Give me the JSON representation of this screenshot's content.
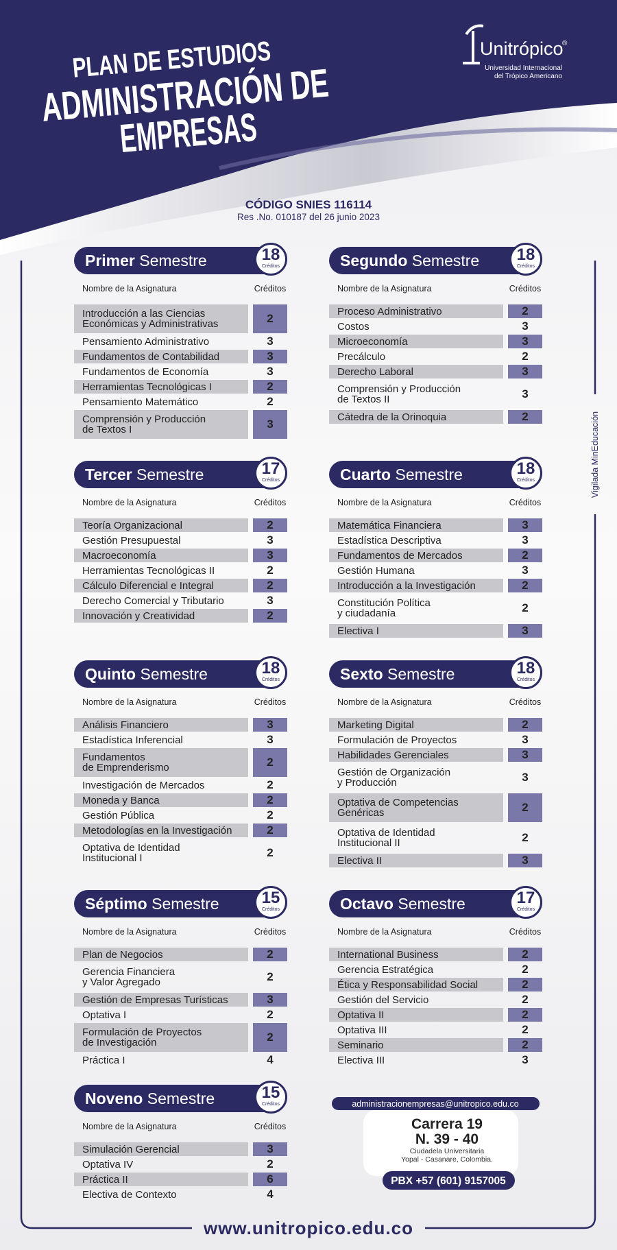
{
  "header": {
    "title_line1": "PLAN DE ESTUDIOS",
    "title_line2": "ADMINISTRACIÓN DE",
    "title_line3": "EMPRESAS",
    "logo_name": "Unitrópico",
    "logo_mark": "®",
    "logo_subtitle_1": "Universidad Internacional",
    "logo_subtitle_2": "del Trópico Americano"
  },
  "code": "CÓDIGO SNIES 116114",
  "resolution": "Res .No. 010187 del 26 junio 2023",
  "side_note": "Vigilada MinEducación",
  "semesters": [
    {
      "ordinal": "Primer",
      "word": "Semestre",
      "credits": 18,
      "credits_label": "Créditos",
      "col_subject": "Nombre de la Asignatura",
      "col_credits": "Créditos",
      "subjects": [
        {
          "name": "Introducción a las Ciencias\nEconómicas y Administrativas",
          "credits": 2
        },
        {
          "name": "Pensamiento Administrativo",
          "credits": 3
        },
        {
          "name": "Fundamentos de Contabilidad",
          "credits": 3
        },
        {
          "name": "Fundamentos de Economía",
          "credits": 3
        },
        {
          "name": "Herramientas Tecnológicas I",
          "credits": 2
        },
        {
          "name": "Pensamiento Matemático",
          "credits": 2
        },
        {
          "name": "Comprensión y Producción\nde Textos I",
          "credits": 3
        }
      ]
    },
    {
      "ordinal": "Segundo",
      "word": "Semestre",
      "credits": 18,
      "credits_label": "Créditos",
      "col_subject": "Nombre de la Asignatura",
      "col_credits": "Créditos",
      "subjects": [
        {
          "name": "Proceso Administrativo",
          "credits": 2
        },
        {
          "name": "Costos",
          "credits": 3
        },
        {
          "name": "Microeconomía",
          "credits": 3
        },
        {
          "name": "Precálculo",
          "credits": 2
        },
        {
          "name": "Derecho Laboral",
          "credits": 3
        },
        {
          "name": "Comprensión y Producción\nde Textos II",
          "credits": 3
        },
        {
          "name": "Cátedra de la Orinoquia",
          "credits": 2
        }
      ]
    },
    {
      "ordinal": "Tercer",
      "word": "Semestre",
      "credits": 17,
      "credits_label": "Créditos",
      "col_subject": "Nombre de la Asignatura",
      "col_credits": "Créditos",
      "subjects": [
        {
          "name": "Teoría Organizacional",
          "credits": 2
        },
        {
          "name": "Gestión Presupuestal",
          "credits": 3
        },
        {
          "name": "Macroeconomía",
          "credits": 3
        },
        {
          "name": "Herramientas Tecnológicas II",
          "credits": 2
        },
        {
          "name": "Cálculo Diferencial e Integral",
          "credits": 2
        },
        {
          "name": "Derecho Comercial y Tributario",
          "credits": 3
        },
        {
          "name": "Innovación y Creatividad",
          "credits": 2
        }
      ]
    },
    {
      "ordinal": "Cuarto",
      "word": "Semestre",
      "credits": 18,
      "credits_label": "Créditos",
      "col_subject": "Nombre de la Asignatura",
      "col_credits": "Créditos",
      "subjects": [
        {
          "name": "Matemática Financiera",
          "credits": 3
        },
        {
          "name": "Estadística Descriptiva",
          "credits": 3
        },
        {
          "name": "Fundamentos de Mercados",
          "credits": 2
        },
        {
          "name": "Gestión Humana",
          "credits": 3
        },
        {
          "name": "Introducción a la Investigación",
          "credits": 2
        },
        {
          "name": "Constitución Política\ny ciudadanía",
          "credits": 2
        },
        {
          "name": "Electiva I",
          "credits": 3
        }
      ]
    },
    {
      "ordinal": "Quinto",
      "word": "Semestre",
      "credits": 18,
      "credits_label": "Créditos",
      "col_subject": "Nombre de la Asignatura",
      "col_credits": "Créditos",
      "subjects": [
        {
          "name": "Análisis Financiero",
          "credits": 3
        },
        {
          "name": "Estadística Inferencial",
          "credits": 3
        },
        {
          "name": "Fundamentos\nde Emprenderismo",
          "credits": 2
        },
        {
          "name": "Investigación de Mercados",
          "credits": 2
        },
        {
          "name": "Moneda y Banca",
          "credits": 2
        },
        {
          "name": "Gestión Pública",
          "credits": 2
        },
        {
          "name": "Metodologías en la Investigación",
          "credits": 2
        },
        {
          "name": "Optativa de Identidad\nInstitucional I",
          "credits": 2
        }
      ]
    },
    {
      "ordinal": "Sexto",
      "word": "Semestre",
      "credits": 18,
      "credits_label": "Créditos",
      "col_subject": "Nombre de la Asignatura",
      "col_credits": "Créditos",
      "subjects": [
        {
          "name": "Marketing Digital",
          "credits": 2
        },
        {
          "name": "Formulación de Proyectos",
          "credits": 3
        },
        {
          "name": "Habilidades Gerenciales",
          "credits": 3
        },
        {
          "name": "Gestión de Organización\ny Producción",
          "credits": 3
        },
        {
          "name": "Optativa de Competencias\nGenéricas",
          "credits": 2
        },
        {
          "name": "Optativa de Identidad\nInstitucional II",
          "credits": 2
        },
        {
          "name": "Electiva II",
          "credits": 3
        }
      ]
    },
    {
      "ordinal": "Séptimo",
      "word": "Semestre",
      "credits": 15,
      "credits_label": "Créditos",
      "col_subject": "Nombre de la Asignatura",
      "col_credits": "Créditos",
      "subjects": [
        {
          "name": "Plan de Negocios",
          "credits": 2
        },
        {
          "name": "Gerencia Financiera\ny Valor Agregado",
          "credits": 2
        },
        {
          "name": "Gestión de Empresas Turísticas",
          "credits": 3
        },
        {
          "name": "Optativa I",
          "credits": 2
        },
        {
          "name": "Formulación de Proyectos\nde Investigación",
          "credits": 2
        },
        {
          "name": "Práctica I",
          "credits": 4
        }
      ]
    },
    {
      "ordinal": "Octavo",
      "word": "Semestre",
      "credits": 17,
      "credits_label": "Créditos",
      "col_subject": "Nombre de la Asignatura",
      "col_credits": "Créditos",
      "subjects": [
        {
          "name": "International Business",
          "credits": 2
        },
        {
          "name": "Gerencia Estratégica",
          "credits": 2
        },
        {
          "name": "Ética y Responsabilidad Social",
          "credits": 2
        },
        {
          "name": "Gestión del Servicio",
          "credits": 2
        },
        {
          "name": "Optativa II",
          "credits": 2
        },
        {
          "name": "Optativa III",
          "credits": 2
        },
        {
          "name": "Seminario",
          "credits": 2
        },
        {
          "name": "Electiva III",
          "credits": 3
        }
      ]
    },
    {
      "ordinal": "Noveno",
      "word": "Semestre",
      "credits": 15,
      "credits_label": "Créditos",
      "col_subject": "Nombre de la Asignatura",
      "col_credits": "Créditos",
      "subjects": [
        {
          "name": "Simulación Gerencial",
          "credits": 3
        },
        {
          "name": "Optativa IV",
          "credits": 2
        },
        {
          "name": "Práctica II",
          "credits": 6
        },
        {
          "name": "Electiva de Contexto",
          "credits": 4
        }
      ]
    }
  ],
  "contact": {
    "email": "administracionempresas@unitropico.edu.co",
    "address_1": "Carrera 19",
    "address_2": "N. 39 - 40",
    "address_3": "Ciudadela Universitaria",
    "address_4": "Yopal - Casanare, Colombia.",
    "phone": "PBX +57 (601) 9157005"
  },
  "website": "www.unitropico.edu.co"
}
